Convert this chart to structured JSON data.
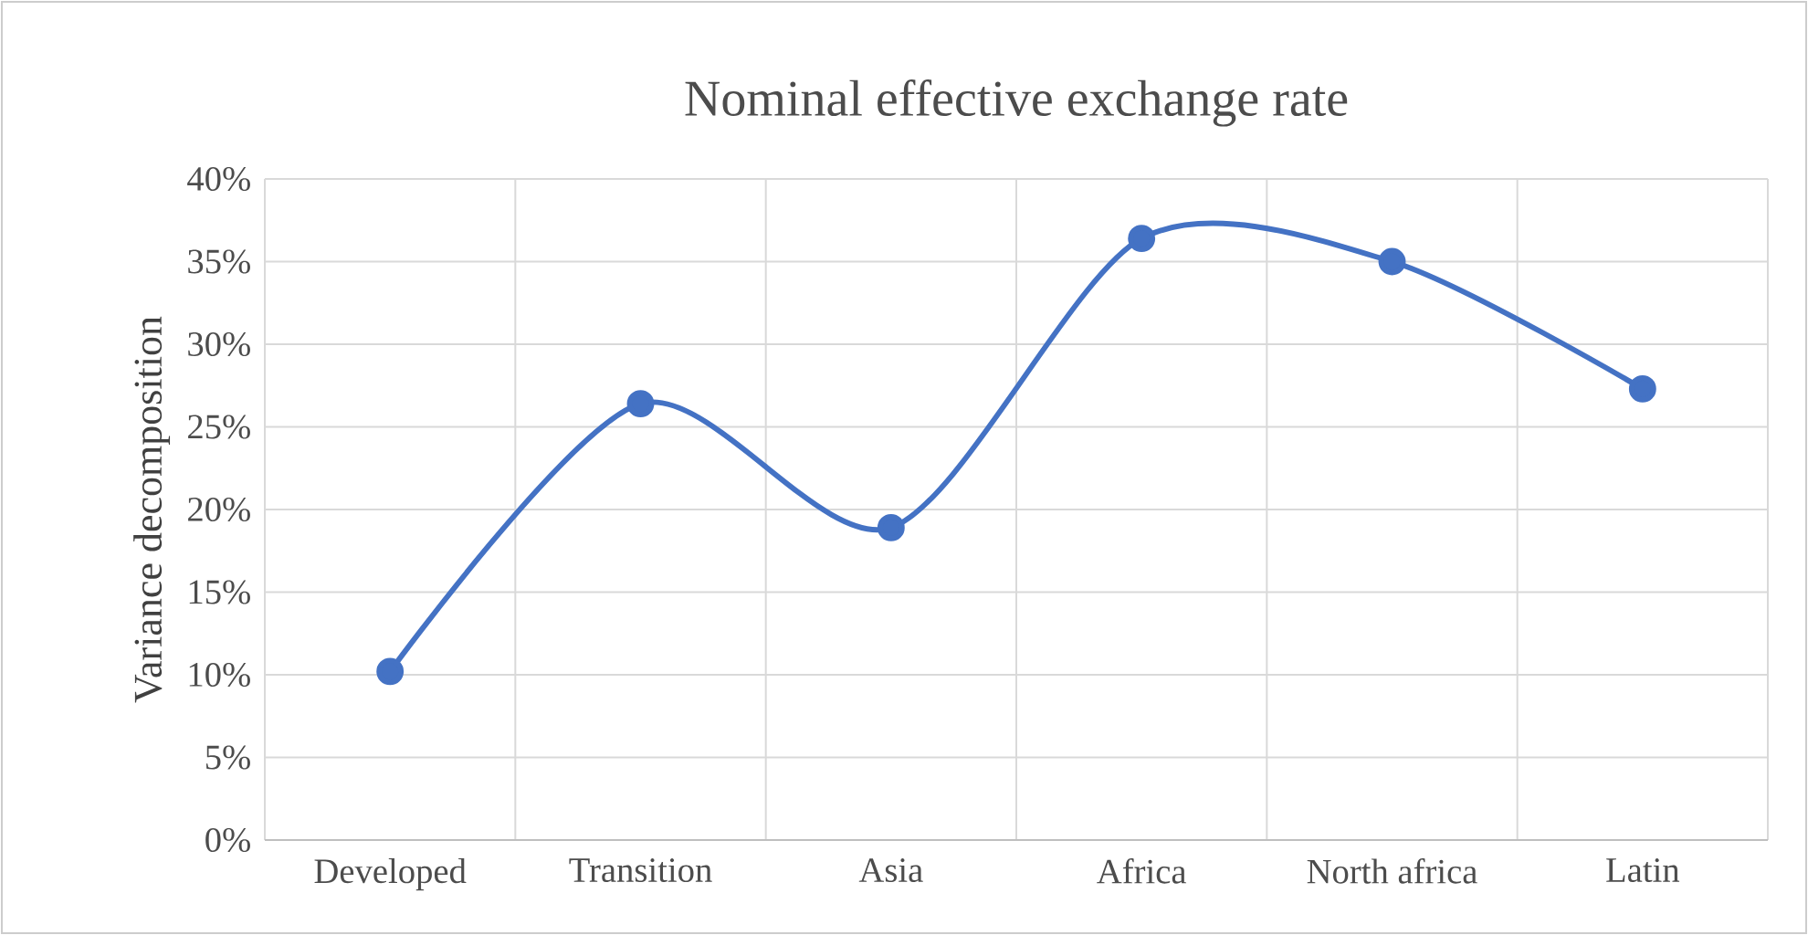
{
  "chart_data": {
    "type": "line",
    "title": "Nominal effective exchange rate",
    "ylabel": "Variance decomposition",
    "categories": [
      "Developed",
      "Transition",
      "Asia",
      "Africa",
      "North africa",
      "Latin"
    ],
    "series": [
      {
        "color": "#4472c4",
        "values": [
          10.2,
          26.4,
          18.9,
          36.4,
          35.0,
          27.3
        ]
      }
    ],
    "ylim": [
      0,
      40
    ],
    "yticks": [
      {
        "value": 0,
        "label": "0%"
      },
      {
        "value": 5,
        "label": "5%"
      },
      {
        "value": 10,
        "label": "10%"
      },
      {
        "value": 15,
        "label": "15%"
      },
      {
        "value": 20,
        "label": "20%"
      },
      {
        "value": 25,
        "label": "25%"
      },
      {
        "value": 30,
        "label": "30%"
      },
      {
        "value": 35,
        "label": "35%"
      },
      {
        "value": 40,
        "label": "40%"
      }
    ],
    "grid": true,
    "marker": "circle",
    "line_style": "solid"
  }
}
